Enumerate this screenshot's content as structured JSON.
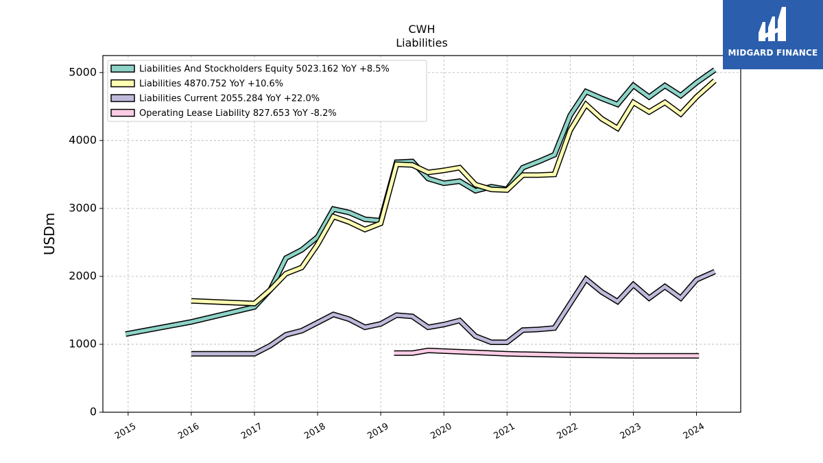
{
  "chart_data": {
    "type": "line",
    "title": "CWH",
    "subtitle": "Liabilities",
    "ylabel": "USDm",
    "xlabel": "",
    "ylim": [
      0,
      5250
    ],
    "xlim": [
      2014.6,
      2024.7
    ],
    "x_ticks": [
      "2015",
      "2016",
      "2017",
      "2018",
      "2019",
      "2020",
      "2021",
      "2022",
      "2023",
      "2024"
    ],
    "y_ticks": [
      "0",
      "1000",
      "2000",
      "3000",
      "4000",
      "5000"
    ],
    "grid": true,
    "legend_position": "top-left",
    "series": [
      {
        "name": "Liabilities And Stockholders Equity",
        "legend_label": "Liabilities And Stockholders Equity  5023.162 YoY +8.5%",
        "color": "#8dd3c7",
        "points": [
          [
            2014.96,
            1150
          ],
          [
            2016.0,
            1330
          ],
          [
            2017.0,
            1550
          ],
          [
            2017.25,
            1800
          ],
          [
            2017.5,
            2270
          ],
          [
            2017.75,
            2390
          ],
          [
            2018.0,
            2580
          ],
          [
            2018.25,
            2990
          ],
          [
            2018.5,
            2940
          ],
          [
            2018.75,
            2840
          ],
          [
            2019.0,
            2820
          ],
          [
            2019.25,
            3680
          ],
          [
            2019.5,
            3690
          ],
          [
            2019.75,
            3440
          ],
          [
            2020.0,
            3370
          ],
          [
            2020.25,
            3400
          ],
          [
            2020.5,
            3260
          ],
          [
            2020.75,
            3320
          ],
          [
            2021.0,
            3280
          ],
          [
            2021.25,
            3600
          ],
          [
            2021.5,
            3690
          ],
          [
            2021.75,
            3790
          ],
          [
            2022.0,
            4370
          ],
          [
            2022.25,
            4720
          ],
          [
            2022.5,
            4620
          ],
          [
            2022.75,
            4530
          ],
          [
            2023.0,
            4810
          ],
          [
            2023.25,
            4640
          ],
          [
            2023.5,
            4810
          ],
          [
            2023.75,
            4660
          ],
          [
            2024.0,
            4850
          ],
          [
            2024.29,
            5040
          ]
        ]
      },
      {
        "name": "Liabilities",
        "legend_label": "Liabilities  4870.752 YoY +10.6%",
        "color": "#ffffb3",
        "points": [
          [
            2016.0,
            1640
          ],
          [
            2017.0,
            1600
          ],
          [
            2017.25,
            1800
          ],
          [
            2017.5,
            2040
          ],
          [
            2017.75,
            2130
          ],
          [
            2018.0,
            2470
          ],
          [
            2018.25,
            2880
          ],
          [
            2018.5,
            2800
          ],
          [
            2018.75,
            2690
          ],
          [
            2019.0,
            2780
          ],
          [
            2019.25,
            3650
          ],
          [
            2019.5,
            3640
          ],
          [
            2019.75,
            3530
          ],
          [
            2020.0,
            3560
          ],
          [
            2020.25,
            3600
          ],
          [
            2020.5,
            3350
          ],
          [
            2020.75,
            3280
          ],
          [
            2021.0,
            3270
          ],
          [
            2021.25,
            3490
          ],
          [
            2021.5,
            3490
          ],
          [
            2021.75,
            3500
          ],
          [
            2022.0,
            4150
          ],
          [
            2022.25,
            4530
          ],
          [
            2022.5,
            4320
          ],
          [
            2022.75,
            4180
          ],
          [
            2023.0,
            4560
          ],
          [
            2023.25,
            4420
          ],
          [
            2023.5,
            4560
          ],
          [
            2023.75,
            4390
          ],
          [
            2024.0,
            4640
          ],
          [
            2024.29,
            4880
          ]
        ]
      },
      {
        "name": "Liabilities Current",
        "legend_label": "Liabilities Current  2055.284 YoY +22.0%",
        "color": "#bebada",
        "points": [
          [
            2016.0,
            860
          ],
          [
            2017.0,
            860
          ],
          [
            2017.25,
            980
          ],
          [
            2017.5,
            1140
          ],
          [
            2017.75,
            1200
          ],
          [
            2018.0,
            1320
          ],
          [
            2018.25,
            1440
          ],
          [
            2018.5,
            1370
          ],
          [
            2018.75,
            1250
          ],
          [
            2019.0,
            1300
          ],
          [
            2019.25,
            1430
          ],
          [
            2019.5,
            1410
          ],
          [
            2019.75,
            1250
          ],
          [
            2020.0,
            1290
          ],
          [
            2020.25,
            1350
          ],
          [
            2020.5,
            1120
          ],
          [
            2020.75,
            1030
          ],
          [
            2021.0,
            1030
          ],
          [
            2021.25,
            1210
          ],
          [
            2021.5,
            1220
          ],
          [
            2021.75,
            1240
          ],
          [
            2022.0,
            1600
          ],
          [
            2022.25,
            1960
          ],
          [
            2022.5,
            1770
          ],
          [
            2022.75,
            1630
          ],
          [
            2023.0,
            1880
          ],
          [
            2023.25,
            1680
          ],
          [
            2023.5,
            1850
          ],
          [
            2023.75,
            1680
          ],
          [
            2024.0,
            1950
          ],
          [
            2024.29,
            2070
          ]
        ]
      },
      {
        "name": "Operating Lease Liability",
        "legend_label": "Operating Lease Liability  827.653 YoY -8.2%",
        "color": "#fccde5",
        "points": [
          [
            2019.21,
            870
          ],
          [
            2019.5,
            870
          ],
          [
            2019.75,
            910
          ],
          [
            2020.0,
            900
          ],
          [
            2020.5,
            880
          ],
          [
            2021.0,
            860
          ],
          [
            2021.5,
            850
          ],
          [
            2022.0,
            840
          ],
          [
            2022.5,
            835
          ],
          [
            2023.0,
            830
          ],
          [
            2023.5,
            830
          ],
          [
            2024.04,
            830
          ]
        ]
      }
    ]
  },
  "brand": {
    "name": "MIDGARD FINANCE",
    "background": "#2b5fad"
  }
}
